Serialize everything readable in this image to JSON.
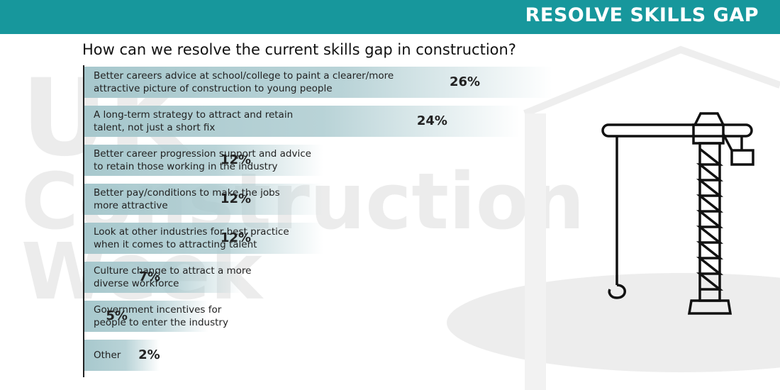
{
  "header": {
    "title": "RESOLVE SKILLS GAP"
  },
  "watermark": [
    "UK",
    "Construction",
    "Week"
  ],
  "chart_data": {
    "type": "bar",
    "orientation": "horizontal",
    "title": "How can we resolve the current skills gap in construction?",
    "categories": [
      [
        "Better careers advice at school/college to paint a clearer/more",
        "attractive picture of construction to young people"
      ],
      [
        "A long-term strategy to attract and retain",
        "talent, not just a short fix"
      ],
      [
        "Better career progression support and advice",
        "to retain those working in the industry"
      ],
      [
        "Better pay/conditions to make the jobs",
        "more attractive"
      ],
      [
        "Look at other industries for best practice",
        "when it comes to attracting talent"
      ],
      [
        "Culture change to attract a more",
        "diverse workforce"
      ],
      [
        "Government incentives for",
        "people to enter the industry"
      ],
      [
        "Other"
      ]
    ],
    "values": [
      26,
      24,
      12,
      12,
      12,
      7,
      5,
      2
    ],
    "value_labels": [
      "26%",
      "24%",
      "12%",
      "12%",
      "12%",
      "7%",
      "5%",
      "2%"
    ],
    "color": "#a7c8cd"
  }
}
